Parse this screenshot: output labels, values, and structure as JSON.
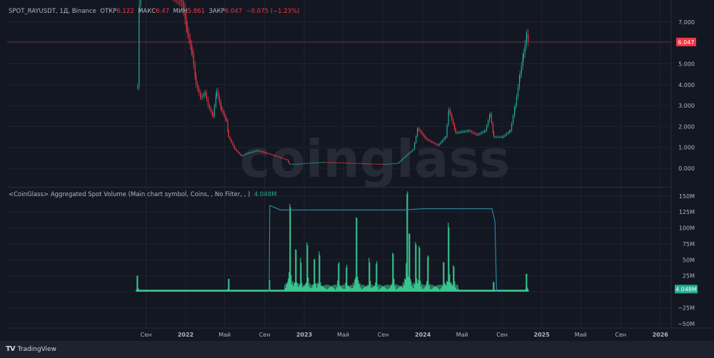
{
  "header": {
    "symbol": "SPOT_RAYUSDT, 1Д, Binance",
    "open_label": "ОТКР",
    "open": "6.122",
    "high_label": "МАКС",
    "high": "6.47",
    "low_label": "МИН",
    "low": "5.861",
    "close_label": "ЗАКР",
    "close": "6.047",
    "change": "−0.075 (−1.23%)"
  },
  "indicator": {
    "title": "<CoinGlass> Aggregated Spot Volume (Main chart symbol, Coins, , No Filter, , )",
    "value": "4.048M"
  },
  "watermark": "coinglass",
  "footer": {
    "brand": "TradingView"
  },
  "colors": {
    "background": "#131722",
    "up": "#22ab94",
    "down": "#f23645",
    "volume": "#3dd598",
    "overlay": "#2a8fa8",
    "last_price": "#f23645"
  },
  "chart_data": [
    {
      "type": "candlestick",
      "title": "SPOT_RAYUSDT, 1Д, Binance",
      "ylim": [
        -0.7,
        8.0
      ],
      "y_ticks": [
        "7.000",
        "5.000",
        "4.000",
        "3.000",
        "2.000",
        "1.000",
        "0.000"
      ],
      "last_price_label": "6.047",
      "last_price": 6.047,
      "grid": true,
      "close_approx": [
        [
          "2021-08-05",
          3.9
        ],
        [
          "2021-08-10",
          7.8
        ],
        [
          "2021-08-20",
          9.5
        ],
        [
          "2021-12-20",
          8.0
        ],
        [
          "2022-01-05",
          6.5
        ],
        [
          "2022-01-20",
          5.5
        ],
        [
          "2022-02-01",
          4.0
        ],
        [
          "2022-02-15",
          3.4
        ],
        [
          "2022-03-01",
          3.6
        ],
        [
          "2022-03-10",
          3.0
        ],
        [
          "2022-03-25",
          2.5
        ],
        [
          "2022-04-05",
          3.7
        ],
        [
          "2022-04-20",
          2.8
        ],
        [
          "2022-05-05",
          2.3
        ],
        [
          "2022-05-12",
          1.5
        ],
        [
          "2022-06-01",
          0.9
        ],
        [
          "2022-06-20",
          0.6
        ],
        [
          "2022-07-15",
          0.75
        ],
        [
          "2022-08-10",
          0.85
        ],
        [
          "2022-09-01",
          0.75
        ],
        [
          "2022-10-01",
          0.6
        ],
        [
          "2022-11-08",
          0.4
        ],
        [
          "2022-11-15",
          0.2
        ],
        [
          "2022-12-15",
          0.22
        ],
        [
          "2023-03-01",
          0.3
        ],
        [
          "2023-06-01",
          0.25
        ],
        [
          "2023-09-01",
          0.2
        ],
        [
          "2023-10-15",
          0.25
        ],
        [
          "2023-11-01",
          0.5
        ],
        [
          "2023-12-01",
          0.9
        ],
        [
          "2023-12-15",
          1.9
        ],
        [
          "2024-01-10",
          1.4
        ],
        [
          "2024-02-15",
          1.1
        ],
        [
          "2024-03-10",
          1.5
        ],
        [
          "2024-03-20",
          2.8
        ],
        [
          "2024-04-10",
          1.7
        ],
        [
          "2024-05-20",
          1.8
        ],
        [
          "2024-06-15",
          1.6
        ],
        [
          "2024-07-10",
          1.8
        ],
        [
          "2024-07-25",
          2.6
        ],
        [
          "2024-08-05",
          1.5
        ],
        [
          "2024-09-01",
          1.5
        ],
        [
          "2024-09-25",
          1.8
        ],
        [
          "2024-10-10",
          3.0
        ],
        [
          "2024-10-25",
          4.5
        ],
        [
          "2024-11-05",
          5.5
        ],
        [
          "2024-11-15",
          6.4
        ],
        [
          "2024-11-20",
          6.047
        ]
      ]
    },
    {
      "type": "bar",
      "title": "<CoinGlass> Aggregated Spot Volume",
      "ylim": [
        -55,
        160
      ],
      "y_ticks": [
        "150M",
        "125M",
        "100M",
        "75M",
        "50M",
        "25M",
        "−25M",
        "−50M"
      ],
      "last_value_label": "4.048M",
      "baseline_M": 3,
      "spikes_M": [
        [
          "2021-08-05",
          25
        ],
        [
          "2022-05-12",
          20
        ],
        [
          "2022-09-15",
          18
        ],
        [
          "2022-11-17",
          130
        ],
        [
          "2022-12-05",
          60
        ],
        [
          "2022-12-20",
          45
        ],
        [
          "2023-01-10",
          70
        ],
        [
          "2023-02-01",
          45
        ],
        [
          "2023-02-15",
          55
        ],
        [
          "2023-04-15",
          40
        ],
        [
          "2023-05-10",
          35
        ],
        [
          "2023-06-10",
          110
        ],
        [
          "2023-07-20",
          45
        ],
        [
          "2023-08-10",
          40
        ],
        [
          "2023-10-01",
          55
        ],
        [
          "2023-11-12",
          150
        ],
        [
          "2023-11-20",
          85
        ],
        [
          "2023-12-10",
          70
        ],
        [
          "2023-12-20",
          65
        ],
        [
          "2024-01-15",
          50
        ],
        [
          "2024-03-05",
          40
        ],
        [
          "2024-03-20",
          100
        ],
        [
          "2024-04-05",
          35
        ],
        [
          "2024-08-05",
          15
        ],
        [
          "2024-11-15",
          28
        ]
      ],
      "overlay_line_M": [
        [
          "2022-09-15",
          0
        ],
        [
          "2022-09-17",
          135
        ],
        [
          "2022-10-20",
          128
        ],
        [
          "2023-11-01",
          128
        ],
        [
          "2024-01-01",
          130
        ],
        [
          "2024-08-01",
          130
        ],
        [
          "2024-08-10",
          110
        ],
        [
          "2024-08-15",
          0
        ]
      ]
    }
  ],
  "x_axis": {
    "ticks": [
      [
        "Сен",
        "2021-09-01"
      ],
      [
        "2022",
        "2022-01-01"
      ],
      [
        "Май",
        "2022-05-01"
      ],
      [
        "Сен",
        "2022-09-01"
      ],
      [
        "2023",
        "2023-01-01"
      ],
      [
        "Май",
        "2023-05-01"
      ],
      [
        "Сен",
        "2023-09-01"
      ],
      [
        "2024",
        "2024-01-01"
      ],
      [
        "Май",
        "2024-05-01"
      ],
      [
        "Сен",
        "2024-09-01"
      ],
      [
        "2025",
        "2025-01-01"
      ],
      [
        "Май",
        "2025-05-01"
      ],
      [
        "Сен",
        "2025-09-01"
      ],
      [
        "2026",
        "2026-01-01"
      ]
    ]
  }
}
